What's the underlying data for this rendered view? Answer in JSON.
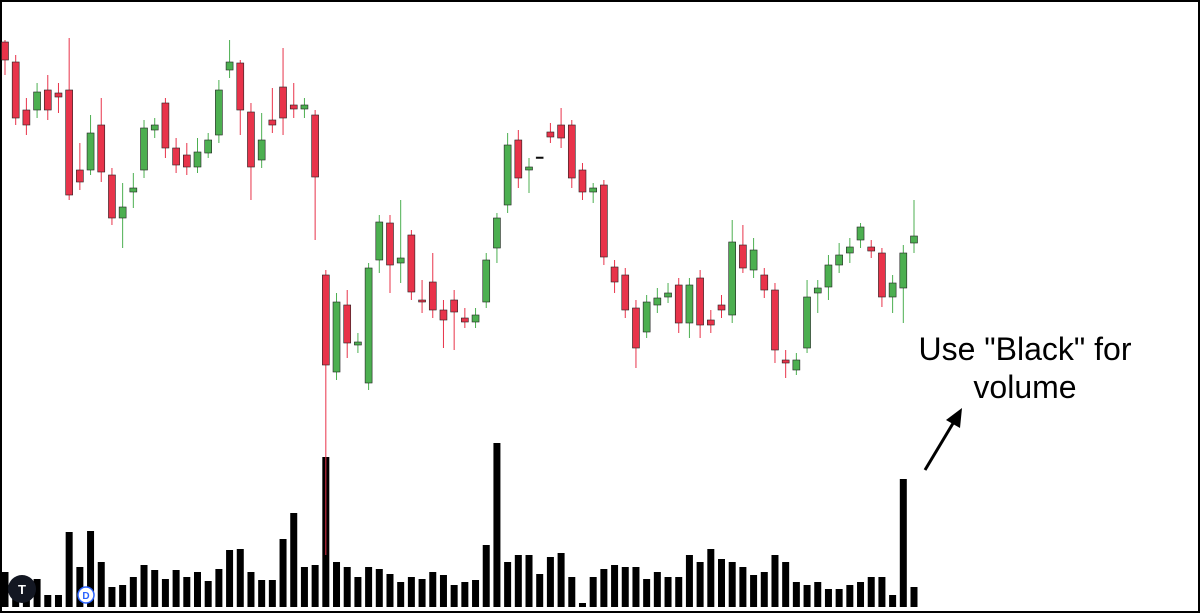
{
  "chart_data": {
    "type": "candlestick",
    "up_color": "#4caf50",
    "down_color": "#e8334a",
    "ylim": [
      0,
      613
    ],
    "candles": {
      "ohlc": [
        [
          571,
          573,
          538,
          553
        ],
        [
          551,
          558,
          488,
          495
        ],
        [
          503,
          515,
          478,
          488
        ],
        [
          503,
          530,
          495,
          521
        ],
        [
          523,
          538,
          493,
          503
        ],
        [
          520,
          530,
          500,
          516
        ],
        [
          523,
          575,
          413,
          418
        ],
        [
          443,
          470,
          423,
          431
        ],
        [
          443,
          498,
          438,
          480
        ],
        [
          488,
          515,
          431,
          441
        ],
        [
          438,
          445,
          388,
          395
        ],
        [
          395,
          430,
          365,
          406
        ],
        [
          421,
          440,
          405,
          425
        ],
        [
          443,
          493,
          435,
          485
        ],
        [
          483,
          495,
          475,
          488
        ],
        [
          510,
          515,
          455,
          465
        ],
        [
          465,
          475,
          440,
          448
        ],
        [
          458,
          470,
          438,
          446
        ],
        [
          446,
          475,
          440,
          461
        ],
        [
          460,
          480,
          455,
          473
        ],
        [
          478,
          533,
          470,
          523
        ],
        [
          543,
          573,
          535,
          551
        ],
        [
          550,
          553,
          478,
          503
        ],
        [
          501,
          510,
          413,
          446
        ],
        [
          453,
          500,
          445,
          473
        ],
        [
          493,
          525,
          480,
          488
        ],
        [
          526,
          565,
          478,
          495
        ],
        [
          508,
          530,
          495,
          504
        ],
        [
          504,
          515,
          495,
          508
        ],
        [
          498,
          503,
          373,
          436
        ],
        [
          338,
          343,
          58,
          248
        ],
        [
          241,
          320,
          233,
          311
        ],
        [
          308,
          323,
          255,
          270
        ],
        [
          268,
          280,
          260,
          271
        ],
        [
          230,
          350,
          223,
          345
        ],
        [
          353,
          398,
          340,
          391
        ],
        [
          390,
          398,
          320,
          348
        ],
        [
          350,
          413,
          330,
          355
        ],
        [
          378,
          383,
          313,
          321
        ],
        [
          313,
          333,
          300,
          311
        ],
        [
          331,
          360,
          295,
          303
        ],
        [
          303,
          313,
          265,
          293
        ],
        [
          313,
          323,
          263,
          301
        ],
        [
          295,
          305,
          285,
          291
        ],
        [
          291,
          305,
          285,
          298
        ],
        [
          311,
          360,
          305,
          353
        ],
        [
          365,
          400,
          350,
          395
        ],
        [
          408,
          480,
          400,
          468
        ],
        [
          473,
          483,
          425,
          435
        ],
        [
          443,
          455,
          420,
          446
        ],
        [
          456,
          456,
          456,
          456
        ],
        [
          481,
          490,
          470,
          476
        ],
        [
          488,
          505,
          465,
          475
        ],
        [
          488,
          493,
          425,
          435
        ],
        [
          443,
          450,
          413,
          421
        ],
        [
          421,
          430,
          410,
          425
        ],
        [
          428,
          433,
          348,
          356
        ],
        [
          346,
          353,
          320,
          331
        ],
        [
          338,
          345,
          295,
          303
        ],
        [
          305,
          313,
          245,
          265
        ],
        [
          281,
          318,
          275,
          311
        ],
        [
          308,
          325,
          300,
          315
        ],
        [
          316,
          330,
          310,
          320
        ],
        [
          328,
          335,
          280,
          290
        ],
        [
          290,
          335,
          275,
          328
        ],
        [
          335,
          343,
          275,
          288
        ],
        [
          293,
          303,
          280,
          288
        ],
        [
          308,
          318,
          295,
          303
        ],
        [
          298,
          393,
          290,
          371
        ],
        [
          368,
          388,
          340,
          345
        ],
        [
          343,
          375,
          335,
          363
        ],
        [
          338,
          345,
          315,
          323
        ],
        [
          323,
          330,
          250,
          263
        ],
        [
          253,
          263,
          235,
          250
        ],
        [
          243,
          260,
          238,
          253
        ],
        [
          265,
          333,
          260,
          316
        ],
        [
          320,
          333,
          300,
          325
        ],
        [
          326,
          358,
          313,
          348
        ],
        [
          348,
          370,
          340,
          358
        ],
        [
          360,
          375,
          350,
          366
        ],
        [
          373,
          390,
          365,
          386
        ],
        [
          366,
          373,
          355,
          362
        ],
        [
          360,
          365,
          306,
          316
        ],
        [
          316,
          338,
          300,
          330
        ],
        [
          325,
          368,
          290,
          360
        ],
        [
          370,
          413,
          360,
          377
        ]
      ]
    },
    "volume": {
      "color": "#000000",
      "ylim": [
        0,
        607
      ],
      "values": [
        35,
        20,
        15,
        28,
        12,
        12,
        75,
        40,
        76,
        45,
        20,
        22,
        30,
        42,
        37,
        28,
        37,
        30,
        35,
        26,
        38,
        57,
        58,
        35,
        27,
        27,
        68,
        94,
        40,
        42,
        150,
        45,
        40,
        30,
        40,
        38,
        33,
        25,
        30,
        28,
        35,
        32,
        22,
        25,
        27,
        62,
        164,
        45,
        52,
        52,
        33,
        50,
        54,
        30,
        4,
        30,
        38,
        42,
        40,
        40,
        28,
        35,
        30,
        30,
        52,
        45,
        58,
        48,
        45,
        40,
        32,
        35,
        52,
        45,
        25,
        22,
        25,
        18,
        18,
        22,
        25,
        30,
        30,
        12,
        128,
        20
      ]
    },
    "annotation": [
      "Use \"Black\" for",
      "volume"
    ],
    "badge": "D"
  }
}
